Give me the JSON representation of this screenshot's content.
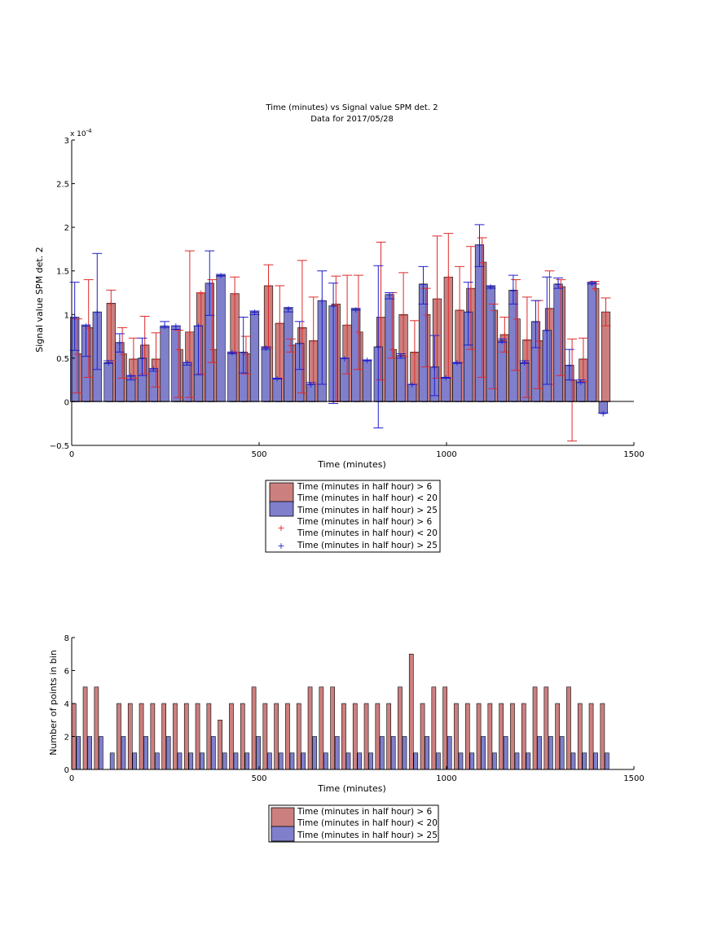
{
  "colors": {
    "red_bar": "#cc7f7f",
    "blue_bar": "#7f7fcc",
    "red_line": "#dd2a2a",
    "blue_line": "#1f1fcc",
    "axis": "#000000"
  },
  "chart_data": [
    {
      "type": "bar",
      "title": "Time (minutes) vs Signal value SPM det. 2",
      "subtitle": "Data for 2017/05/28",
      "xlabel": "Time (minutes)",
      "ylabel": "Signal value SPM det. 2",
      "y_exponent_label": "x 10",
      "y_exponent_power": "-4",
      "xlim": [
        0,
        1500
      ],
      "ylim": [
        -0.5,
        3
      ],
      "xticks": [
        0,
        500,
        1000,
        1500
      ],
      "yticks": [
        -0.5,
        0,
        0.5,
        1,
        1.5,
        2,
        2.5,
        3
      ],
      "ytick_labels": [
        "−0.5",
        "0",
        "0.5",
        "1",
        "1.5",
        "2",
        "2.5",
        "3"
      ],
      "y_scale_note": "values shown in units of 1e-4",
      "bar_width": 23,
      "legend_placement": "below",
      "legend": [
        "Time (minutes in half hour) > 6",
        "Time (minutes in half hour) < 20",
        "Time (minutes in half hour) > 25",
        "Time (minutes in half hour) > 6",
        "Time (minutes in half hour) < 20",
        "Time (minutes in half hour) > 25"
      ],
      "series": [
        {
          "name": "Time (minutes in half hour) > 6 Time (minutes in half hour) < 20",
          "color": "#cc7f7f",
          "error_color": "#dd2a2a",
          "x": [
            15,
            45,
            105,
            135,
            165,
            195,
            225,
            285,
            315,
            345,
            375,
            435,
            465,
            525,
            555,
            585,
            615,
            645,
            705,
            735,
            765,
            825,
            855,
            885,
            915,
            945,
            975,
            1005,
            1035,
            1065,
            1095,
            1125,
            1155,
            1185,
            1215,
            1245,
            1275,
            1305,
            1335,
            1365,
            1395,
            1425
          ],
          "values": [
            0.55,
            0.85,
            1.13,
            0.55,
            0.49,
            0.65,
            0.49,
            0.6,
            0.8,
            1.25,
            0.6,
            1.24,
            0.55,
            1.33,
            0.9,
            0.65,
            0.85,
            0.7,
            1.12,
            0.88,
            0.8,
            0.97,
            0.6,
            1.0,
            0.57,
            1.0,
            1.18,
            1.43,
            1.05,
            1.3,
            1.6,
            1.05,
            0.77,
            0.95,
            0.71,
            0.7,
            1.07,
            1.32,
            0.25,
            0.49,
            1.3,
            1.03
          ],
          "err_low": [
            0.1,
            0.28,
            0.47,
            0.27,
            0.27,
            0.32,
            0.17,
            0.05,
            0.05,
            0.32,
            0.45,
            0.56,
            0.32,
            0.62,
            0.27,
            0.57,
            0.1,
            0.2,
            0.0,
            0.32,
            0.37,
            0.25,
            0.5,
            0.52,
            0.2,
            0.4,
            0.27,
            0.27,
            0.45,
            0.6,
            0.28,
            0.15,
            0.57,
            0.36,
            0.05,
            0.15,
            0.2,
            0.3,
            -0.45,
            0.23,
            1.35,
            0.87
          ],
          "err_high": [
            0.95,
            1.4,
            1.28,
            0.85,
            0.73,
            0.98,
            0.79,
            0.82,
            1.73,
            1.25,
            1.4,
            1.43,
            0.75,
            1.57,
            1.33,
            0.72,
            1.62,
            1.2,
            1.44,
            1.45,
            1.45,
            1.83,
            1.25,
            1.48,
            0.93,
            1.3,
            1.9,
            1.93,
            1.55,
            1.78,
            1.88,
            1.12,
            0.97,
            1.4,
            1.2,
            1.16,
            1.5,
            1.4,
            0.72,
            0.73,
            1.38,
            1.19
          ]
        },
        {
          "name": "Time (minutes in half hour) > 25",
          "color": "#7f7fcc",
          "error_color": "#1f1fcc",
          "x": [
            8,
            38,
            68,
            98,
            128,
            158,
            188,
            218,
            248,
            278,
            308,
            338,
            368,
            398,
            428,
            458,
            488,
            518,
            548,
            578,
            608,
            638,
            668,
            698,
            728,
            758,
            788,
            818,
            848,
            878,
            908,
            938,
            968,
            998,
            1028,
            1058,
            1088,
            1118,
            1148,
            1178,
            1208,
            1238,
            1268,
            1298,
            1328,
            1358,
            1388,
            1418
          ],
          "values": [
            0.97,
            0.87,
            1.03,
            0.45,
            0.68,
            0.3,
            0.5,
            0.38,
            0.87,
            0.87,
            0.45,
            0.87,
            1.36,
            1.45,
            0.57,
            0.57,
            1.03,
            0.62,
            0.27,
            1.07,
            0.67,
            0.2,
            1.16,
            1.1,
            0.5,
            1.06,
            0.48,
            0.63,
            1.23,
            0.53,
            0.2,
            1.35,
            0.4,
            0.28,
            0.45,
            1.03,
            1.8,
            1.32,
            0.7,
            1.28,
            0.45,
            0.92,
            0.82,
            1.35,
            0.42,
            0.23,
            1.36,
            -0.13
          ],
          "err_low": [
            0.59,
            0.52,
            0.37,
            0.44,
            0.57,
            0.25,
            0.3,
            0.35,
            0.85,
            0.83,
            0.42,
            0.31,
            0.99,
            1.44,
            0.55,
            0.33,
            1.0,
            0.6,
            0.26,
            1.03,
            0.37,
            0.2,
            0.2,
            -0.02,
            0.5,
            1.05,
            0.47,
            -0.3,
            1.18,
            0.5,
            0.2,
            1.12,
            0.07,
            0.27,
            0.44,
            0.65,
            1.55,
            1.3,
            0.68,
            1.12,
            0.44,
            0.62,
            0.2,
            1.3,
            0.25,
            0.22,
            1.35,
            -0.13
          ],
          "err_high": [
            1.37,
            0.88,
            1.7,
            0.47,
            0.78,
            0.3,
            0.73,
            0.38,
            0.92,
            0.87,
            0.45,
            0.87,
            1.73,
            1.46,
            0.57,
            0.97,
            1.04,
            0.63,
            0.27,
            1.08,
            0.92,
            0.22,
            1.5,
            1.36,
            0.5,
            1.07,
            0.48,
            1.56,
            1.25,
            0.55,
            0.2,
            1.55,
            0.76,
            0.28,
            0.45,
            1.37,
            2.03,
            1.33,
            0.72,
            1.45,
            0.47,
            1.16,
            1.43,
            1.42,
            0.6,
            0.25,
            1.37,
            -0.13
          ]
        }
      ]
    },
    {
      "type": "bar",
      "title": "",
      "xlabel": "Time (minutes)",
      "ylabel": "Number of points in bin",
      "xlim": [
        0,
        1500
      ],
      "ylim": [
        0,
        8
      ],
      "xticks": [
        0,
        500,
        1000,
        1500
      ],
      "yticks": [
        0,
        2,
        4,
        6,
        8
      ],
      "bar_width": 11,
      "legend_placement": "below",
      "legend": [
        "Time (minutes in half hour) > 6",
        "Time (minutes in half hour) < 20",
        "Time (minutes in half hour) > 25"
      ],
      "series": [
        {
          "name": "Time (minutes in half hour) > 6 Time (minutes in half hour) < 20",
          "color": "#cc7f7f",
          "x": [
            6,
            36,
            66,
            126,
            156,
            186,
            216,
            246,
            276,
            306,
            336,
            366,
            396,
            426,
            456,
            486,
            516,
            546,
            576,
            606,
            636,
            666,
            696,
            726,
            756,
            786,
            816,
            846,
            876,
            906,
            936,
            966,
            996,
            1026,
            1056,
            1086,
            1116,
            1146,
            1176,
            1206,
            1236,
            1266,
            1296,
            1326,
            1356,
            1386,
            1416
          ],
          "values": [
            4,
            5,
            5,
            4,
            4,
            4,
            4,
            4,
            4,
            4,
            4,
            4,
            3,
            4,
            4,
            5,
            4,
            4,
            4,
            4,
            5,
            5,
            5,
            4,
            4,
            4,
            4,
            4,
            5,
            7,
            4,
            5,
            5,
            4,
            4,
            4,
            4,
            4,
            4,
            4,
            5,
            5,
            4,
            5,
            4,
            4,
            4
          ]
        },
        {
          "name": "Time (minutes in half hour) > 25",
          "color": "#7f7fcc",
          "x": [
            18,
            48,
            78,
            108,
            138,
            168,
            198,
            228,
            258,
            288,
            318,
            348,
            378,
            408,
            438,
            468,
            498,
            528,
            558,
            588,
            618,
            648,
            678,
            708,
            738,
            768,
            798,
            828,
            858,
            888,
            918,
            948,
            978,
            1008,
            1038,
            1068,
            1098,
            1128,
            1158,
            1188,
            1218,
            1248,
            1278,
            1308,
            1338,
            1368,
            1398,
            1428
          ],
          "values": [
            2,
            2,
            2,
            1,
            2,
            1,
            2,
            1,
            2,
            1,
            1,
            1,
            2,
            1,
            1,
            1,
            2,
            1,
            1,
            1,
            1,
            2,
            1,
            2,
            1,
            1,
            1,
            2,
            2,
            2,
            1,
            2,
            1,
            2,
            1,
            1,
            2,
            1,
            2,
            1,
            1,
            2,
            2,
            2,
            1,
            1,
            1,
            1
          ]
        }
      ]
    }
  ]
}
